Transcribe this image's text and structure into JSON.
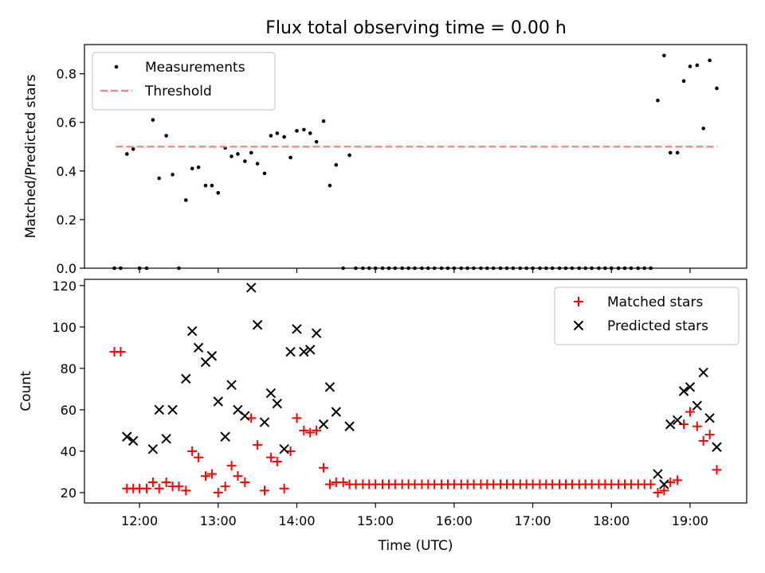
{
  "figure_title": "Flux total observing time = 0.00 h",
  "chart_data": [
    {
      "type": "scatter",
      "ylabel": "Matched/Predicted stars",
      "xlim": [
        11.3,
        19.72
      ],
      "ylim": [
        0,
        0.92
      ],
      "yticks": [
        0.0,
        0.2,
        0.4,
        0.6,
        0.8
      ],
      "ytick_labels": [
        "0.0",
        "0.2",
        "0.4",
        "0.6",
        "0.8"
      ],
      "xticks": [
        12,
        13,
        14,
        15,
        16,
        17,
        18,
        19
      ],
      "grid": false,
      "legend_position": "upper-left",
      "series": [
        {
          "name": "Measurements",
          "marker": "dot",
          "color": "#000000",
          "points": [
            [
              11.68,
              0.0
            ],
            [
              11.76,
              0.0
            ],
            [
              11.84,
              0.47
            ],
            [
              11.92,
              0.49
            ],
            [
              12.0,
              0.0
            ],
            [
              12.09,
              0.0
            ],
            [
              12.17,
              0.61
            ],
            [
              12.25,
              0.37
            ],
            [
              12.34,
              0.545
            ],
            [
              12.42,
              0.385
            ],
            [
              12.5,
              0.0
            ],
            [
              12.59,
              0.28
            ],
            [
              12.67,
              0.41
            ],
            [
              12.75,
              0.415
            ],
            [
              12.84,
              0.34
            ],
            [
              12.92,
              0.34
            ],
            [
              13.0,
              0.31
            ],
            [
              13.09,
              0.495
            ],
            [
              13.17,
              0.46
            ],
            [
              13.25,
              0.47
            ],
            [
              13.34,
              0.44
            ],
            [
              13.42,
              0.475
            ],
            [
              13.5,
              0.43
            ],
            [
              13.59,
              0.39
            ],
            [
              13.67,
              0.545
            ],
            [
              13.75,
              0.555
            ],
            [
              13.84,
              0.54
            ],
            [
              13.92,
              0.455
            ],
            [
              14.0,
              0.565
            ],
            [
              14.09,
              0.57
            ],
            [
              14.17,
              0.555
            ],
            [
              14.25,
              0.52
            ],
            [
              14.34,
              0.605
            ],
            [
              14.42,
              0.34
            ],
            [
              14.5,
              0.425
            ],
            [
              14.59,
              0.0
            ],
            [
              14.67,
              0.465
            ],
            [
              14.75,
              0.0
            ],
            [
              14.84,
              0.0
            ],
            [
              14.92,
              0.0
            ],
            [
              15.0,
              0.0
            ],
            [
              15.09,
              0.0
            ],
            [
              15.17,
              0.0
            ],
            [
              15.25,
              0.0
            ],
            [
              15.34,
              0.0
            ],
            [
              15.42,
              0.0
            ],
            [
              15.5,
              0.0
            ],
            [
              15.59,
              0.0
            ],
            [
              15.67,
              0.0
            ],
            [
              15.75,
              0.0
            ],
            [
              15.84,
              0.0
            ],
            [
              15.92,
              0.0
            ],
            [
              16.0,
              0.0
            ],
            [
              16.09,
              0.0
            ],
            [
              16.17,
              0.0
            ],
            [
              16.25,
              0.0
            ],
            [
              16.34,
              0.0
            ],
            [
              16.42,
              0.0
            ],
            [
              16.5,
              0.0
            ],
            [
              16.59,
              0.0
            ],
            [
              16.67,
              0.0
            ],
            [
              16.75,
              0.0
            ],
            [
              16.84,
              0.0
            ],
            [
              16.92,
              0.0
            ],
            [
              17.0,
              0.0
            ],
            [
              17.09,
              0.0
            ],
            [
              17.17,
              0.0
            ],
            [
              17.25,
              0.0
            ],
            [
              17.34,
              0.0
            ],
            [
              17.42,
              0.0
            ],
            [
              17.5,
              0.0
            ],
            [
              17.59,
              0.0
            ],
            [
              17.67,
              0.0
            ],
            [
              17.75,
              0.0
            ],
            [
              17.84,
              0.0
            ],
            [
              17.92,
              0.0
            ],
            [
              18.0,
              0.0
            ],
            [
              18.09,
              0.0
            ],
            [
              18.17,
              0.0
            ],
            [
              18.25,
              0.0
            ],
            [
              18.34,
              0.0
            ],
            [
              18.42,
              0.0
            ],
            [
              18.5,
              0.0
            ],
            [
              18.59,
              0.69
            ],
            [
              18.67,
              0.875
            ],
            [
              18.75,
              0.475
            ],
            [
              18.84,
              0.475
            ],
            [
              18.92,
              0.77
            ],
            [
              19.0,
              0.83
            ],
            [
              19.09,
              0.835
            ],
            [
              19.17,
              0.575
            ],
            [
              19.25,
              0.855
            ],
            [
              19.34,
              0.74
            ]
          ]
        },
        {
          "name": "Threshold",
          "style": "dashed-line",
          "color": "#ff8080",
          "x": [
            11.7,
            19.35
          ],
          "y": [
            0.5,
            0.5
          ]
        }
      ]
    },
    {
      "type": "scatter",
      "xlabel": "Time (UTC)",
      "ylabel": "Count",
      "xlim": [
        11.3,
        19.72
      ],
      "ylim": [
        15,
        123
      ],
      "yticks": [
        20,
        40,
        60,
        80,
        100,
        120
      ],
      "xticks": [
        12,
        13,
        14,
        15,
        16,
        17,
        18,
        19
      ],
      "xtick_labels": [
        "12:00",
        "13:00",
        "14:00",
        "15:00",
        "16:00",
        "17:00",
        "18:00",
        "19:00"
      ],
      "grid": false,
      "legend_position": "upper-right",
      "series": [
        {
          "name": "Matched stars",
          "marker": "plus",
          "color": "#ff0000",
          "points": [
            [
              11.68,
              88
            ],
            [
              11.76,
              88
            ],
            [
              11.84,
              22
            ],
            [
              11.92,
              22
            ],
            [
              12.0,
              22
            ],
            [
              12.09,
              22
            ],
            [
              12.17,
              25
            ],
            [
              12.25,
              22
            ],
            [
              12.34,
              25
            ],
            [
              12.42,
              23
            ],
            [
              12.5,
              23
            ],
            [
              12.59,
              21
            ],
            [
              12.67,
              40
            ],
            [
              12.75,
              37
            ],
            [
              12.84,
              28
            ],
            [
              12.92,
              29
            ],
            [
              13.0,
              20
            ],
            [
              13.09,
              23
            ],
            [
              13.17,
              33
            ],
            [
              13.25,
              28
            ],
            [
              13.34,
              25
            ],
            [
              13.42,
              56
            ],
            [
              13.5,
              43
            ],
            [
              13.59,
              21
            ],
            [
              13.67,
              37
            ],
            [
              13.75,
              35
            ],
            [
              13.84,
              22
            ],
            [
              13.92,
              40
            ],
            [
              14.0,
              56
            ],
            [
              14.09,
              50
            ],
            [
              14.17,
              49
            ],
            [
              14.25,
              50
            ],
            [
              14.34,
              32
            ],
            [
              14.42,
              24
            ],
            [
              14.5,
              25
            ],
            [
              14.59,
              25
            ],
            [
              14.67,
              24
            ],
            [
              14.75,
              24
            ],
            [
              14.84,
              24
            ],
            [
              14.92,
              24
            ],
            [
              15.0,
              24
            ],
            [
              15.09,
              24
            ],
            [
              15.17,
              24
            ],
            [
              15.25,
              24
            ],
            [
              15.34,
              24
            ],
            [
              15.42,
              24
            ],
            [
              15.5,
              24
            ],
            [
              15.59,
              24
            ],
            [
              15.67,
              24
            ],
            [
              15.75,
              24
            ],
            [
              15.84,
              24
            ],
            [
              15.92,
              24
            ],
            [
              16.0,
              24
            ],
            [
              16.09,
              24
            ],
            [
              16.17,
              24
            ],
            [
              16.25,
              24
            ],
            [
              16.34,
              24
            ],
            [
              16.42,
              24
            ],
            [
              16.5,
              24
            ],
            [
              16.59,
              24
            ],
            [
              16.67,
              24
            ],
            [
              16.75,
              24
            ],
            [
              16.84,
              24
            ],
            [
              16.92,
              24
            ],
            [
              17.0,
              24
            ],
            [
              17.09,
              24
            ],
            [
              17.17,
              24
            ],
            [
              17.25,
              24
            ],
            [
              17.34,
              24
            ],
            [
              17.42,
              24
            ],
            [
              17.5,
              24
            ],
            [
              17.59,
              24
            ],
            [
              17.67,
              24
            ],
            [
              17.75,
              24
            ],
            [
              17.84,
              24
            ],
            [
              17.92,
              24
            ],
            [
              18.0,
              24
            ],
            [
              18.09,
              24
            ],
            [
              18.17,
              24
            ],
            [
              18.25,
              24
            ],
            [
              18.34,
              24
            ],
            [
              18.42,
              24
            ],
            [
              18.5,
              24
            ],
            [
              18.59,
              20
            ],
            [
              18.67,
              21
            ],
            [
              18.75,
              25
            ],
            [
              18.84,
              26
            ],
            [
              18.92,
              53
            ],
            [
              19.0,
              59
            ],
            [
              19.09,
              52
            ],
            [
              19.17,
              45
            ],
            [
              19.25,
              48
            ],
            [
              19.34,
              31
            ]
          ]
        },
        {
          "name": "Predicted stars",
          "marker": "x",
          "color": "#000000",
          "points": [
            [
              11.84,
              47
            ],
            [
              11.92,
              45
            ],
            [
              12.17,
              41
            ],
            [
              12.25,
              60
            ],
            [
              12.34,
              46
            ],
            [
              12.42,
              60
            ],
            [
              12.59,
              75
            ],
            [
              12.67,
              98
            ],
            [
              12.75,
              90
            ],
            [
              12.84,
              83
            ],
            [
              12.92,
              86
            ],
            [
              13.0,
              64
            ],
            [
              13.09,
              47
            ],
            [
              13.17,
              72
            ],
            [
              13.25,
              60
            ],
            [
              13.34,
              57
            ],
            [
              13.42,
              119
            ],
            [
              13.5,
              101
            ],
            [
              13.59,
              54
            ],
            [
              13.67,
              68
            ],
            [
              13.75,
              63
            ],
            [
              13.84,
              41
            ],
            [
              13.92,
              88
            ],
            [
              14.0,
              99
            ],
            [
              14.09,
              88
            ],
            [
              14.17,
              89
            ],
            [
              14.25,
              97
            ],
            [
              14.34,
              53
            ],
            [
              14.42,
              71
            ],
            [
              14.5,
              59
            ],
            [
              14.67,
              52
            ],
            [
              18.59,
              29
            ],
            [
              18.67,
              24
            ],
            [
              18.75,
              53
            ],
            [
              18.84,
              55
            ],
            [
              18.92,
              69
            ],
            [
              19.0,
              71
            ],
            [
              19.09,
              62
            ],
            [
              19.17,
              78
            ],
            [
              19.25,
              56
            ],
            [
              19.34,
              42
            ]
          ]
        }
      ]
    }
  ]
}
